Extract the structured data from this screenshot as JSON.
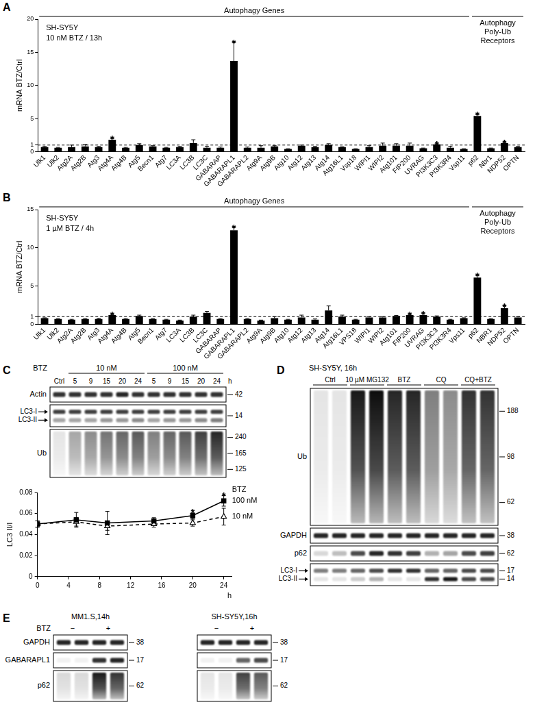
{
  "chart_data": [
    {
      "panel": "A",
      "type": "bar",
      "y_label": "mRNA BTZ/Ctrl",
      "annotations": [
        "SH-SY5Y",
        "10 nM BTZ / 13h"
      ],
      "groups": [
        {
          "label": "Autophagy Genes",
          "from": "Ulk1",
          "to": "Vsp11"
        },
        {
          "label": [
            "Autophagy",
            "Poly-Ub",
            "Receptors"
          ],
          "from": "p62",
          "to": "OPTN"
        }
      ],
      "categories": [
        "Ulk1",
        "Ulk2",
        "Atg2A",
        "Atg2B",
        "Atg3",
        "Atg4A",
        "Atg4B",
        "Atg5",
        "Becn1",
        "Atg7",
        "LC3A",
        "LC3B",
        "LC3C",
        "GABARAP",
        "GABARAPL1",
        "GABARAPL2",
        "Atg9A",
        "Atg9B",
        "Atg10",
        "Atg12",
        "Atg13",
        "Atg14",
        "Atg16L1",
        "Vsp18",
        "WIPI1",
        "WIPI2",
        "Atg101",
        "FIP200",
        "UVRAG",
        "PI3K3C3",
        "PI3K3R4",
        "Vsp11",
        "p62",
        "Nbr1",
        "NDP52",
        "OPTN"
      ],
      "values": [
        0.7,
        0.6,
        0.7,
        0.8,
        0.7,
        1.8,
        0.6,
        1.0,
        0.8,
        0.6,
        0.7,
        1.3,
        0.6,
        0.6,
        13.7,
        0.6,
        0.6,
        0.8,
        0.4,
        0.9,
        0.7,
        1.0,
        0.7,
        0.4,
        0.7,
        0.9,
        0.9,
        0.9,
        0.5,
        1.1,
        0.6,
        0.4,
        5.4,
        0.5,
        1.3,
        0.7
      ],
      "errors": [
        0.1,
        0.05,
        0.3,
        0.3,
        0.1,
        0.2,
        0.05,
        0.2,
        0.1,
        0.05,
        0.1,
        0.5,
        0.2,
        0.1,
        2.8,
        0.1,
        0.3,
        0.1,
        0.05,
        0.1,
        0.1,
        0.2,
        0.05,
        0.05,
        0.2,
        0.4,
        0.3,
        0.4,
        0.05,
        0.1,
        0.2,
        0.05,
        0.2,
        0.05,
        0.1,
        0.1
      ],
      "significance": [
        "Atg4A",
        "GABARAPL1",
        "PI3K3C3",
        "p62",
        "NDP52"
      ],
      "significance_mark": "*",
      "reference_line": {
        "value": 1,
        "line_style": "dashed"
      },
      "color": "#000000",
      "ylim": [
        0,
        20
      ],
      "yticks": [
        0,
        1,
        5,
        10,
        15,
        20
      ],
      "grid": false
    },
    {
      "panel": "B",
      "type": "bar",
      "y_label": "mRNA BTZ/Ctrl",
      "annotations": [
        "SH-SY5Y",
        "1 µM BTZ / 4h"
      ],
      "groups": [
        {
          "label": "Autophagy Genes",
          "from": "Ulk1",
          "to": "Vps11"
        },
        {
          "label": [
            "Autophagy",
            "Poly-Ub",
            "Receptors"
          ],
          "from": "p62",
          "to": "OPTN"
        }
      ],
      "categories": [
        "Ulk1",
        "Ulk2",
        "Atg2A",
        "Atg2B",
        "Atg3",
        "Atg4A",
        "Atg4B",
        "Atg5",
        "Becn1",
        "Atg7",
        "LC3A",
        "LC3B",
        "LC3C",
        "GABARAP",
        "GABARAPL1",
        "GABARAPL2",
        "Atg9A",
        "Atg9B",
        "Atg10",
        "Atg12",
        "Atg13",
        "Atg14",
        "Atg16L1",
        "VPS18",
        "WIPI1",
        "WIPI2",
        "Atg101",
        "FIP200",
        "UVRAG",
        "PI3K3C3",
        "PI3K3R4",
        "Vps11",
        "p62",
        "NBR1",
        "NDP52",
        "OPTN"
      ],
      "values": [
        0.8,
        0.7,
        0.6,
        0.7,
        0.7,
        1.2,
        0.7,
        1.1,
        0.7,
        0.6,
        0.5,
        1.0,
        1.5,
        0.7,
        12.3,
        0.7,
        0.5,
        0.8,
        0.6,
        0.9,
        0.6,
        1.8,
        1.0,
        0.6,
        0.9,
        0.9,
        1.1,
        1.2,
        1.2,
        1.0,
        0.6,
        0.8,
        6.1,
        0.7,
        2.1,
        0.9
      ],
      "errors": [
        0.05,
        0.05,
        0.05,
        0.05,
        0.1,
        0.1,
        0.05,
        0.1,
        0.05,
        0.05,
        0.05,
        0.2,
        0.2,
        0.05,
        0.4,
        0.05,
        0.05,
        0.2,
        0.05,
        0.3,
        0.1,
        0.6,
        0.2,
        0.05,
        0.1,
        0.1,
        0.05,
        0.1,
        0.2,
        0.1,
        0.05,
        0.05,
        0.3,
        0.05,
        0.3,
        0.1
      ],
      "significance": [
        "Atg4A",
        "GABARAPL1",
        "FIP200",
        "UVRAG",
        "p62",
        "NDP52"
      ],
      "significance_mark": "*",
      "reference_line": {
        "value": 1,
        "line_style": "dashed"
      },
      "color": "#000000",
      "ylim": [
        0,
        15
      ],
      "yticks": [
        0,
        1,
        5,
        10,
        15
      ],
      "grid": false
    },
    {
      "type": "line",
      "x_label": "h",
      "y_label": "LC3 II/I",
      "annotations": [
        "BTZ"
      ],
      "x": [
        0,
        5,
        9,
        15,
        20,
        24
      ],
      "series": [
        {
          "name": "100 nM",
          "color": "#000000",
          "marker": "square",
          "line_style": "solid",
          "values": [
            0.05,
            0.054,
            0.051,
            0.053,
            0.058,
            0.072
          ],
          "errors": [
            0.003,
            0.007,
            0.011,
            0.003,
            0.003,
            0.005
          ],
          "significance": [
            20,
            24
          ]
        },
        {
          "name": "10 nM",
          "color": "#000000",
          "marker": "open_triangle",
          "line_style": "dashed",
          "values": [
            0.05,
            0.052,
            0.048,
            0.05,
            0.051,
            0.057
          ],
          "errors": [
            0.003,
            0.004,
            0.004,
            0.003,
            0.003,
            0.008
          ],
          "significance": []
        }
      ],
      "significance_mark": "*",
      "xlim": [
        0,
        25
      ],
      "xticks": [
        0,
        4,
        8,
        12,
        16,
        20,
        24
      ],
      "ylim": [
        0,
        0.08
      ],
      "yticks": [
        0,
        0.02,
        0.04,
        0.06,
        0.08
      ],
      "grid": false
    }
  ],
  "blots": [
    {
      "panel": "C",
      "group_row_label": "BTZ",
      "groups": [
        {
          "label": "10 nM",
          "span": [
            1,
            5
          ]
        },
        {
          "label": "100 nM",
          "span": [
            6,
            10
          ]
        }
      ],
      "lane_labels": [
        "Ctrl",
        "5",
        "9",
        "15",
        "20",
        "24",
        "5",
        "9",
        "15",
        "20",
        "24"
      ],
      "lane_unit": "h",
      "rows": [
        {
          "labels": [
            "Actin"
          ],
          "kind": "band",
          "markers": [
            42
          ],
          "intensity": [
            [
              0.8,
              0.8,
              0.8,
              0.8,
              0.85,
              0.8,
              0.8,
              0.8,
              0.8,
              0.8,
              0.8
            ]
          ]
        },
        {
          "labels": [
            "LC3-I",
            "LC3-II"
          ],
          "kind": "doublet",
          "markers": [
            14
          ],
          "intensity": [
            [
              0.75,
              0.75,
              0.75,
              0.75,
              0.75,
              0.75,
              0.75,
              0.75,
              0.75,
              0.75,
              0.75
            ],
            [
              0.35,
              0.35,
              0.35,
              0.4,
              0.4,
              0.45,
              0.35,
              0.4,
              0.4,
              0.45,
              0.5
            ]
          ]
        },
        {
          "labels": [
            "Ub"
          ],
          "kind": "smear",
          "markers": [
            240,
            165,
            125
          ],
          "intensity": [
            [
              0.1,
              0.35,
              0.45,
              0.55,
              0.6,
              0.65,
              0.5,
              0.6,
              0.65,
              0.75,
              0.85
            ]
          ]
        }
      ]
    },
    {
      "panel": "D",
      "title": "SH-SY5Y, 16h",
      "groups": [
        {
          "label": "Ctrl",
          "span": [
            0,
            1
          ]
        },
        {
          "label": "10 µM MG132",
          "span": [
            2,
            3
          ]
        },
        {
          "label": "BTZ",
          "span": [
            4,
            5
          ]
        },
        {
          "label": "CQ",
          "span": [
            6,
            7
          ]
        },
        {
          "label": "CQ+BTZ",
          "span": [
            8,
            9
          ]
        }
      ],
      "rows": [
        {
          "labels": [
            "Ub"
          ],
          "kind": "smear",
          "markers": [
            188,
            98,
            62
          ],
          "intensity": [
            [
              0.1,
              0.1,
              0.9,
              0.95,
              0.85,
              0.85,
              0.5,
              0.45,
              0.8,
              0.8
            ]
          ]
        },
        {
          "labels": [
            "GAPDH"
          ],
          "kind": "band",
          "markers": [
            38
          ],
          "intensity": [
            [
              0.85,
              0.85,
              0.85,
              0.85,
              0.85,
              0.85,
              0.85,
              0.85,
              0.85,
              0.85
            ]
          ]
        },
        {
          "labels": [
            "p62"
          ],
          "kind": "band",
          "markers": [
            62
          ],
          "intensity": [
            [
              0.15,
              0.25,
              0.7,
              0.85,
              0.8,
              0.75,
              0.3,
              0.35,
              0.7,
              0.75
            ]
          ]
        },
        {
          "labels": [
            "LC3-I",
            "LC3-II"
          ],
          "kind": "doublet",
          "markers": [
            17,
            14
          ],
          "intensity": [
            [
              0.5,
              0.5,
              0.6,
              0.7,
              0.8,
              0.8,
              0.6,
              0.6,
              0.7,
              0.7
            ],
            [
              0.1,
              0.1,
              0.2,
              0.3,
              0.1,
              0.1,
              0.8,
              0.9,
              0.7,
              0.7
            ]
          ]
        }
      ]
    },
    {
      "panel": "E",
      "title": "MM1.S,14h",
      "group_row_label": "BTZ",
      "groups": [
        {
          "label": "−",
          "span": [
            0,
            1
          ]
        },
        {
          "label": "+",
          "span": [
            2,
            3
          ]
        }
      ],
      "rows": [
        {
          "labels": [
            "GAPDH"
          ],
          "kind": "band",
          "markers": [
            38
          ],
          "intensity": [
            [
              0.85,
              0.85,
              0.85,
              0.85
            ]
          ]
        },
        {
          "labels": [
            "GABARAPL1"
          ],
          "kind": "band",
          "markers": [
            17
          ],
          "intensity": [
            [
              0.05,
              0.05,
              0.8,
              0.85
            ]
          ]
        },
        {
          "labels": [
            "p62"
          ],
          "kind": "smear",
          "markers": [
            62
          ],
          "intensity": [
            [
              0.15,
              0.15,
              0.9,
              0.8
            ]
          ]
        }
      ]
    },
    {
      "title": "SH-SY5Y,16h",
      "groups": [
        {
          "label": "−",
          "span": [
            0,
            1
          ]
        },
        {
          "label": "+",
          "span": [
            2,
            3
          ]
        }
      ],
      "rows": [
        {
          "kind": "band",
          "markers": [
            38
          ],
          "intensity": [
            [
              0.85,
              0.85,
              0.85,
              0.85
            ]
          ]
        },
        {
          "kind": "band",
          "markers": [
            17
          ],
          "intensity": [
            [
              0.05,
              0.05,
              0.6,
              0.7
            ]
          ]
        },
        {
          "kind": "smear",
          "markers": [
            62
          ],
          "intensity": [
            [
              0.1,
              0.1,
              0.75,
              0.65
            ]
          ]
        }
      ]
    }
  ]
}
